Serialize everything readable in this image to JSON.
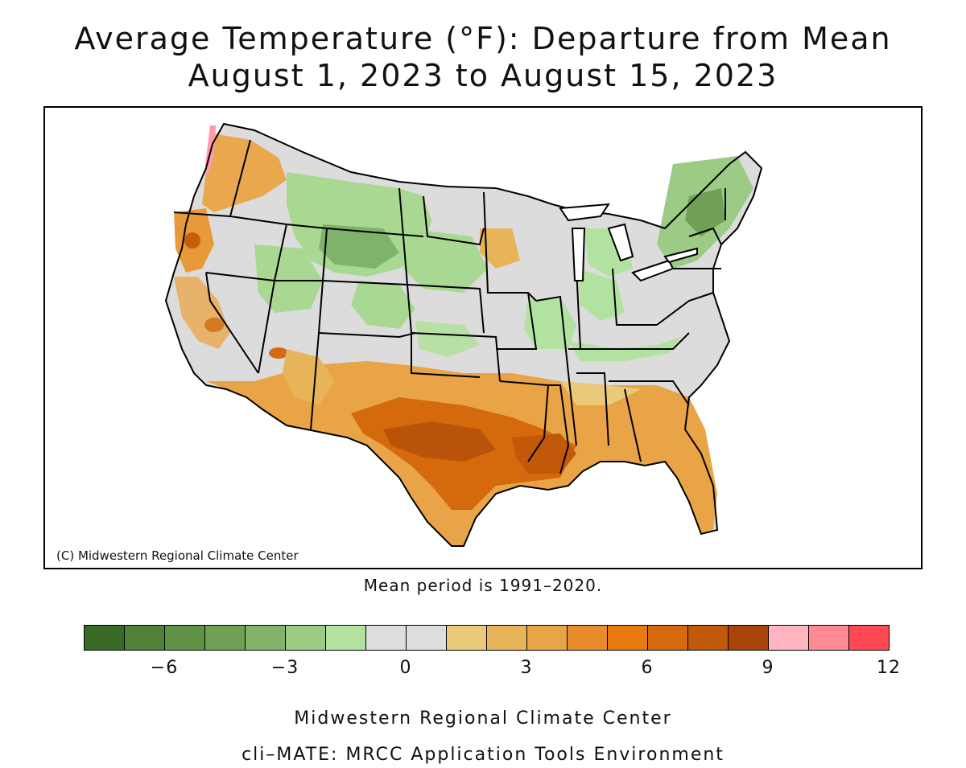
{
  "title_line1": "Average Temperature (°F): Departure from Mean",
  "title_line2": "August 1, 2023 to August 15, 2023",
  "copyright": "(C) Midwestern Regional Climate Center",
  "mean_note": "Mean period is 1991–2020.",
  "legend": {
    "colors": [
      "#3a6b26",
      "#4f8237",
      "#5f9246",
      "#6fa155",
      "#82b36a",
      "#9ccb86",
      "#b2e2a0",
      "#dddddd",
      "#dddddd",
      "#ebc97a",
      "#e8b45a",
      "#e8a446",
      "#e88c2a",
      "#e67a10",
      "#d46a0c",
      "#c15a0a",
      "#a84408",
      "#ffb4c0",
      "#ff8a92",
      "#ff4a56"
    ],
    "ticks": [
      {
        "label": "−6",
        "value": -6
      },
      {
        "label": "−3",
        "value": -3
      },
      {
        "label": "0",
        "value": 0
      },
      {
        "label": "3",
        "value": 3
      },
      {
        "label": "6",
        "value": 6
      },
      {
        "label": "9",
        "value": 9
      },
      {
        "label": "12",
        "value": 12
      }
    ],
    "min": -8,
    "max": 12
  },
  "footer_line1": "Midwestern Regional Climate Center",
  "footer_line2": "cli–MATE: MRCC Application Tools Environment"
}
